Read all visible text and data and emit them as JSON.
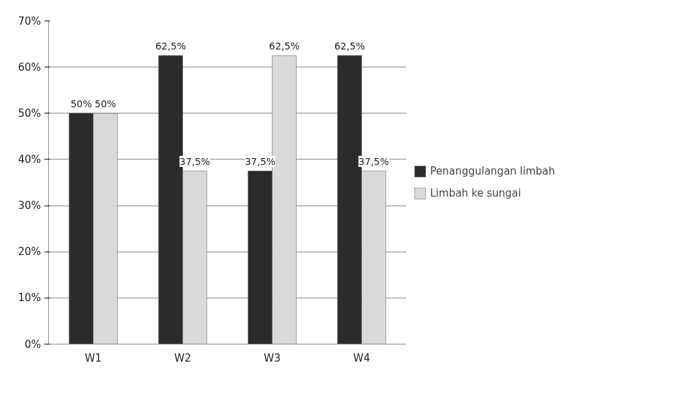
{
  "chart_data": {
    "type": "bar",
    "categories": [
      "W1",
      "W2",
      "W3",
      "W4"
    ],
    "series": [
      {
        "name": "Penanggulangan limbah",
        "color": "#2b2b2b",
        "values": [
          50,
          62.5,
          37.5,
          62.5
        ],
        "value_labels": [
          "50%",
          "62,5%",
          "37,5%",
          "62,5%"
        ]
      },
      {
        "name": "Limbah ke sungai",
        "color": "#d9d9d9",
        "values": [
          50,
          37.5,
          62.5,
          37.5
        ],
        "value_labels": [
          "50%",
          "37,5%",
          "62,5%",
          "37,5%"
        ]
      }
    ],
    "ylim": [
      0,
      70
    ],
    "yticks": [
      {
        "value": 0,
        "label": "0%"
      },
      {
        "value": 10,
        "label": "10%"
      },
      {
        "value": 20,
        "label": "20%"
      },
      {
        "value": 30,
        "label": "30%"
      },
      {
        "value": 40,
        "label": "40%"
      },
      {
        "value": 50,
        "label": "50%"
      },
      {
        "value": 60,
        "label": "60%"
      },
      {
        "value": 70,
        "label": "70%"
      }
    ],
    "grid": "y",
    "legend": "right"
  }
}
